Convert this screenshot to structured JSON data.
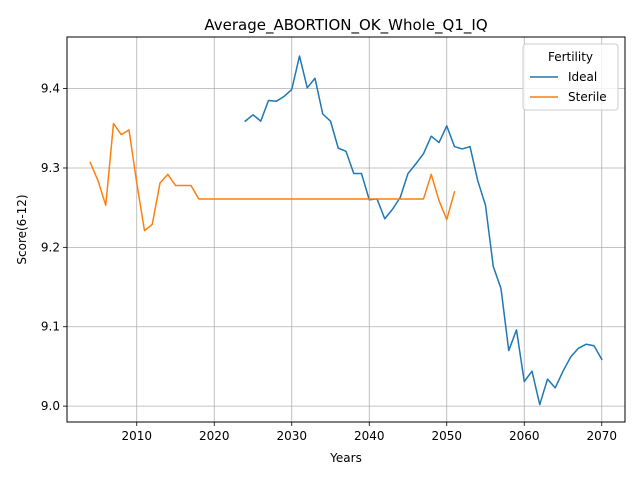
{
  "chart_data": {
    "type": "line",
    "title": "Average_ABORTION_OK_Whole_Q1_IQ",
    "xlabel": "Years",
    "ylabel": "Score(6-12)",
    "xlim": [
      2001,
      2073
    ],
    "ylim": [
      8.98,
      9.465
    ],
    "xticks": [
      2010,
      2020,
      2030,
      2040,
      2050,
      2060,
      2070
    ],
    "yticks": [
      9.0,
      9.1,
      9.2,
      9.3,
      9.4
    ],
    "ytick_labels": [
      "9.0",
      "9.1",
      "9.2",
      "9.3",
      "9.4"
    ],
    "grid": true,
    "legend": {
      "title": "Fertility",
      "position": "top-right"
    },
    "series": [
      {
        "name": "Ideal",
        "color": "#1f77b4",
        "points": [
          [
            2024,
            9.359
          ],
          [
            2025,
            9.367
          ],
          [
            2026,
            9.359
          ],
          [
            2027,
            9.385
          ],
          [
            2028,
            9.384
          ],
          [
            2029,
            9.39
          ],
          [
            2030,
            9.399
          ],
          [
            2031,
            9.441
          ],
          [
            2032,
            9.401
          ],
          [
            2033,
            9.413
          ],
          [
            2034,
            9.368
          ],
          [
            2035,
            9.359
          ],
          [
            2036,
            9.325
          ],
          [
            2037,
            9.321
          ],
          [
            2038,
            9.293
          ],
          [
            2039,
            9.293
          ],
          [
            2040,
            9.26
          ],
          [
            2041,
            9.261
          ],
          [
            2042,
            9.236
          ],
          [
            2043,
            9.248
          ],
          [
            2044,
            9.263
          ],
          [
            2045,
            9.293
          ],
          [
            2046,
            9.305
          ],
          [
            2047,
            9.318
          ],
          [
            2048,
            9.34
          ],
          [
            2049,
            9.332
          ],
          [
            2050,
            9.353
          ],
          [
            2051,
            9.327
          ],
          [
            2052,
            9.324
          ],
          [
            2053,
            9.327
          ],
          [
            2054,
            9.284
          ],
          [
            2055,
            9.253
          ],
          [
            2056,
            9.176
          ],
          [
            2057,
            9.148
          ],
          [
            2058,
            9.07
          ],
          [
            2059,
            9.096
          ],
          [
            2060,
            9.031
          ],
          [
            2061,
            9.044
          ],
          [
            2062,
            9.002
          ],
          [
            2063,
            9.034
          ],
          [
            2064,
            9.023
          ],
          [
            2065,
            9.044
          ],
          [
            2066,
            9.062
          ],
          [
            2067,
            9.073
          ],
          [
            2068,
            9.078
          ],
          [
            2069,
            9.076
          ],
          [
            2070,
            9.059
          ]
        ]
      },
      {
        "name": "Sterile",
        "color": "#ff7f0e",
        "points": [
          [
            2004,
            9.307
          ],
          [
            2005,
            9.284
          ],
          [
            2006,
            9.253
          ],
          [
            2007,
            9.356
          ],
          [
            2008,
            9.342
          ],
          [
            2009,
            9.348
          ],
          [
            2010,
            9.281
          ],
          [
            2011,
            9.221
          ],
          [
            2012,
            9.229
          ],
          [
            2013,
            9.281
          ],
          [
            2014,
            9.292
          ],
          [
            2015,
            9.278
          ],
          [
            2016,
            9.278
          ],
          [
            2017,
            9.278
          ],
          [
            2018,
            9.261
          ],
          [
            2019,
            9.261
          ],
          [
            2020,
            9.261
          ],
          [
            2025,
            9.261
          ],
          [
            2030,
            9.261
          ],
          [
            2035,
            9.261
          ],
          [
            2040,
            9.261
          ],
          [
            2045,
            9.261
          ],
          [
            2047,
            9.261
          ],
          [
            2048,
            9.292
          ],
          [
            2049,
            9.259
          ],
          [
            2050,
            9.235
          ],
          [
            2051,
            9.27
          ]
        ]
      }
    ]
  }
}
